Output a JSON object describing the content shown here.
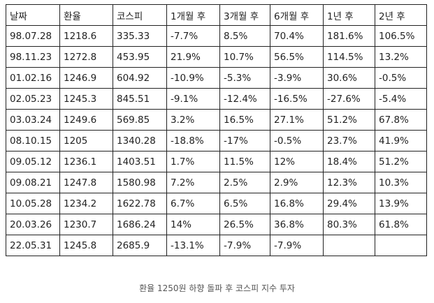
{
  "table": {
    "headers": [
      "날짜",
      "환율",
      "코스피",
      "1개월 후",
      "3개월 후",
      "6개월 후",
      "1년 후",
      "2년 후"
    ],
    "rows": [
      [
        "98.07.28",
        "1218.6",
        "335.33",
        "-7.7%",
        "8.5%",
        "70.4%",
        "181.6%",
        "106.5%"
      ],
      [
        "98.11.23",
        "1272.8",
        "453.95",
        "21.9%",
        "10.7%",
        "56.5%",
        "114.5%",
        "13.2%"
      ],
      [
        "01.02.16",
        "1246.9",
        "604.92",
        "-10.9%",
        "-5.3%",
        "-3.9%",
        "30.6%",
        "-0.5%"
      ],
      [
        "02.05.23",
        "1245.3",
        "845.51",
        "-9.1%",
        "-12.4%",
        "-16.5%",
        "-27.6%",
        "-5.4%"
      ],
      [
        "03.03.24",
        "1249.6",
        "569.85",
        "3.2%",
        "16.5%",
        "27.1%",
        "51.2%",
        "67.8%"
      ],
      [
        "08.10.15",
        "1205",
        "1340.28",
        "-18.8%",
        "-17%",
        "-0.5%",
        "23.7%",
        "41.9%"
      ],
      [
        "09.05.12",
        "1236.1",
        "1403.51",
        "1.7%",
        "11.5%",
        "12%",
        "18.4%",
        "51.2%"
      ],
      [
        "09.08.21",
        "1247.8",
        "1580.98",
        "7.2%",
        "2.5%",
        "2.9%",
        "12.3%",
        "10.3%"
      ],
      [
        "10.05.28",
        "1234.2",
        "1622.78",
        "6.7%",
        "6.5%",
        "16.8%",
        "29.4%",
        "13.9%"
      ],
      [
        "20.03.26",
        "1230.7",
        "1686.24",
        "14%",
        "26.5%",
        "36.8%",
        "80.3%",
        "61.8%"
      ],
      [
        "22.05.31",
        "1245.8",
        "2685.9",
        "-13.1%",
        "-7.9%",
        "-7.9%",
        "",
        ""
      ]
    ]
  },
  "caption": "환율 1250원 하향 돌파 후 코스피 지수 투자"
}
